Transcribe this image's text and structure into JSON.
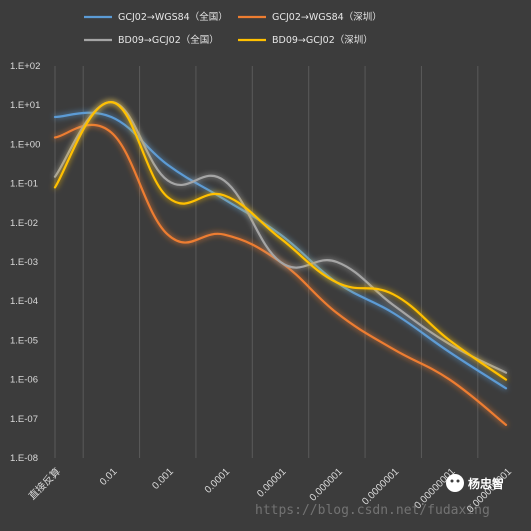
{
  "chart_data": {
    "type": "line",
    "title": "",
    "xlabel": "",
    "ylabel": "",
    "yscale": "log",
    "ylim": [
      1e-08,
      100
    ],
    "grid": "vertical",
    "legend_position": "top",
    "categories": [
      "直接反算",
      "0.01",
      "0.001",
      "0.0001",
      "0.00001",
      "0.000001",
      "0.0000001",
      "0.00000001",
      "0.000000001"
    ],
    "y_ticks": [
      "1.E+02",
      "1.E+01",
      "1.E+00",
      "1.E-01",
      "1.E-02",
      "1.E-03",
      "1.E-04",
      "1.E-05",
      "1.E-06",
      "1.E-07",
      "1.E-08"
    ],
    "series": [
      {
        "name": "GCJ02→WGS84（全国）",
        "color": "#5b9bd5",
        "values": [
          5,
          5,
          0.3,
          0.04,
          0.005,
          0.0003,
          5e-05,
          5e-06,
          6e-07
        ]
      },
      {
        "name": "GCJ02→WGS84（深圳）",
        "color": "#ed7d31",
        "values": [
          1.5,
          2.0,
          0.005,
          0.005,
          0.001,
          5e-05,
          6e-06,
          1e-06,
          7e-08
        ]
      },
      {
        "name": "BD09→GCJ02（全国）",
        "color": "#a5a5a5",
        "values": [
          0.15,
          12,
          0.12,
          0.12,
          0.001,
          0.001,
          8e-05,
          8e-06,
          1.5e-06
        ]
      },
      {
        "name": "BD09→GCJ02（深圳）",
        "color": "#ffc000",
        "values": [
          0.08,
          12,
          0.045,
          0.05,
          0.004,
          0.0003,
          0.00015,
          1e-05,
          1e-06
        ]
      }
    ]
  },
  "watermark": {
    "url_text": "https://blog.csdn.net/fudaxing",
    "account_name": "杨忠智",
    "logo_icon": "wechat-icon"
  }
}
